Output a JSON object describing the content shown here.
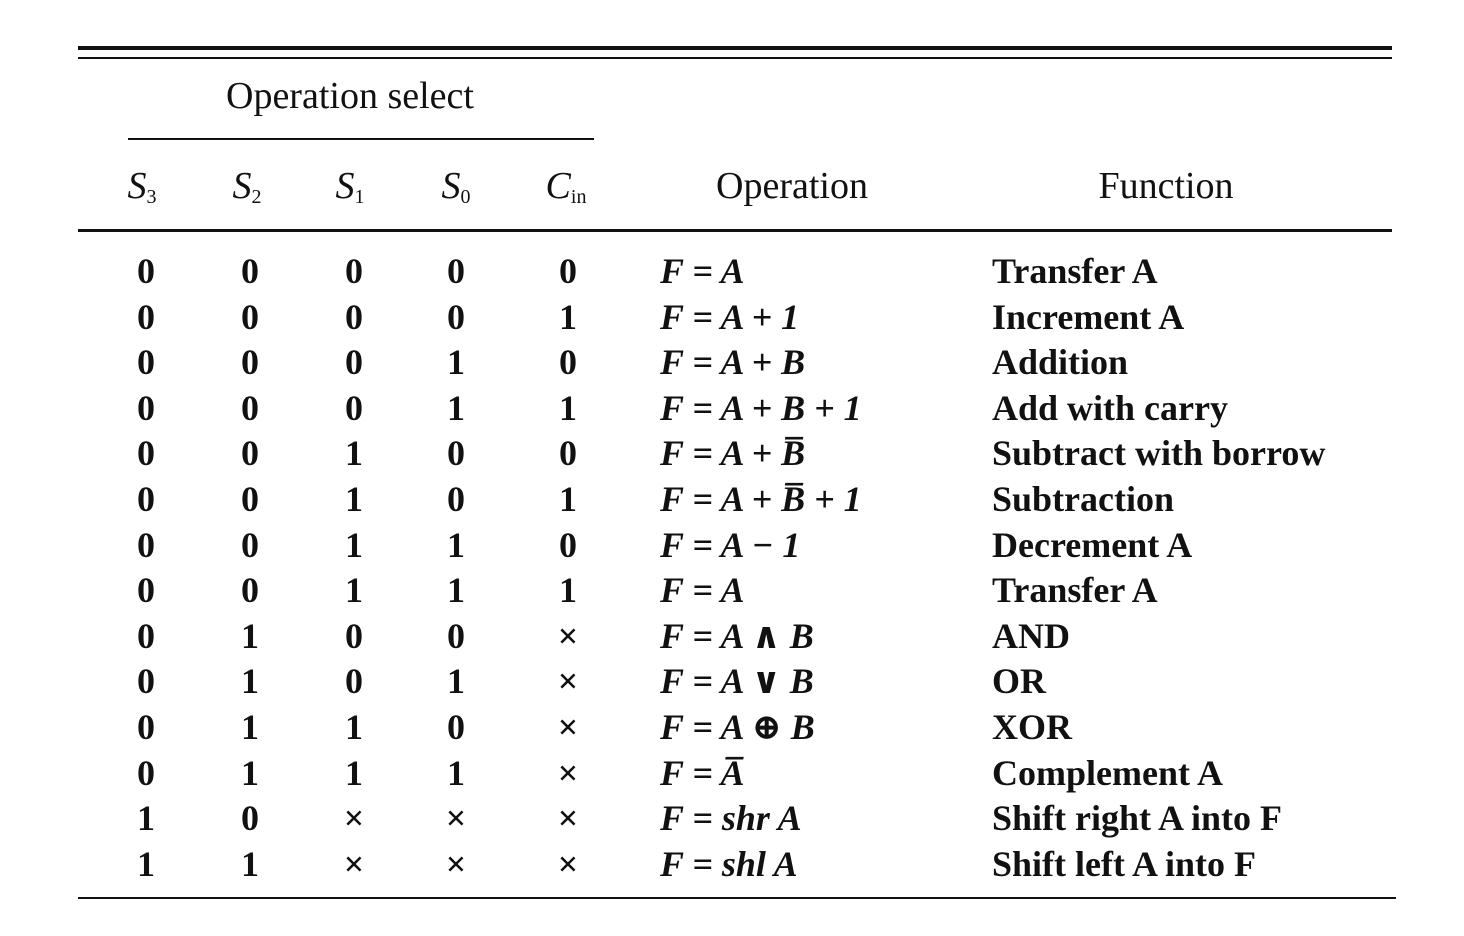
{
  "table": {
    "group_header": "Operation select",
    "headers": {
      "s3": {
        "base": "S",
        "sub": "3"
      },
      "s2": {
        "base": "S",
        "sub": "2"
      },
      "s1": {
        "base": "S",
        "sub": "1"
      },
      "s0": {
        "base": "S",
        "sub": "0"
      },
      "cin": {
        "base": "C",
        "sub": "in"
      },
      "operation": "Operation",
      "function": "Function"
    },
    "rows": [
      {
        "s3": "0",
        "s2": "0",
        "s1": "0",
        "s0": "0",
        "cin": "0",
        "operation": "F = A",
        "function": "Transfer A"
      },
      {
        "s3": "0",
        "s2": "0",
        "s1": "0",
        "s0": "0",
        "cin": "1",
        "operation": "F = A + 1",
        "function": "Increment A"
      },
      {
        "s3": "0",
        "s2": "0",
        "s1": "0",
        "s0": "1",
        "cin": "0",
        "operation": "F = A + B",
        "function": "Addition"
      },
      {
        "s3": "0",
        "s2": "0",
        "s1": "0",
        "s0": "1",
        "cin": "1",
        "operation": "F = A + B + 1",
        "function": "Add with carry"
      },
      {
        "s3": "0",
        "s2": "0",
        "s1": "1",
        "s0": "0",
        "cin": "0",
        "operation": "F = A + B̅",
        "function": "Subtract with borrow"
      },
      {
        "s3": "0",
        "s2": "0",
        "s1": "1",
        "s0": "0",
        "cin": "1",
        "operation": "F = A + B̅ + 1",
        "function": "Subtraction"
      },
      {
        "s3": "0",
        "s2": "0",
        "s1": "1",
        "s0": "1",
        "cin": "0",
        "operation": "F = A − 1",
        "function": "Decrement A"
      },
      {
        "s3": "0",
        "s2": "0",
        "s1": "1",
        "s0": "1",
        "cin": "1",
        "operation": "F = A",
        "function": "Transfer A"
      },
      {
        "s3": "0",
        "s2": "1",
        "s1": "0",
        "s0": "0",
        "cin": "×",
        "operation": "F = A ∧ B",
        "function": "AND"
      },
      {
        "s3": "0",
        "s2": "1",
        "s1": "0",
        "s0": "1",
        "cin": "×",
        "operation": "F = A ∨ B",
        "function": "OR"
      },
      {
        "s3": "0",
        "s2": "1",
        "s1": "1",
        "s0": "0",
        "cin": "×",
        "operation": "F = A ⊕ B",
        "function": "XOR"
      },
      {
        "s3": "0",
        "s2": "1",
        "s1": "1",
        "s0": "1",
        "cin": "×",
        "operation": "F = A̅",
        "function": "Complement A"
      },
      {
        "s3": "1",
        "s2": "0",
        "s1": "×",
        "s0": "×",
        "cin": "×",
        "operation": "F = shr A",
        "function": "Shift right A into F"
      },
      {
        "s3": "1",
        "s2": "1",
        "s1": "×",
        "s0": "×",
        "cin": "×",
        "operation": "F = shl A",
        "function": "Shift left A into F"
      }
    ]
  }
}
